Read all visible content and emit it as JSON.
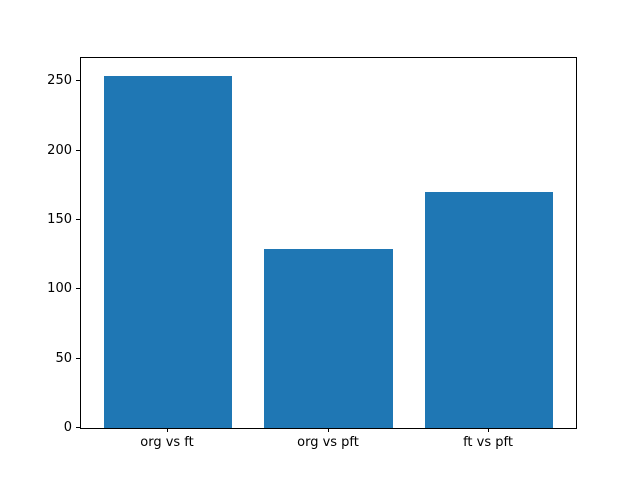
{
  "figure": {
    "background": "#ffffff",
    "plot_background": "#ffffff",
    "spine_color": "#000000",
    "tick_color": "#000000",
    "text_color": "#000000"
  },
  "chart_data": {
    "type": "bar",
    "categories": [
      "org vs ft",
      "org vs pft",
      "ft vs pft"
    ],
    "values": [
      254,
      129,
      170
    ],
    "title": "",
    "xlabel": "",
    "ylabel": "",
    "ylim": [
      0,
      266.7
    ],
    "xlim": [
      -0.54,
      2.54
    ],
    "yticks": [
      0,
      50,
      100,
      150,
      200,
      250
    ],
    "bar_color": "#1f77b4",
    "bar_width": 0.8,
    "grid": false,
    "legend": "none"
  }
}
